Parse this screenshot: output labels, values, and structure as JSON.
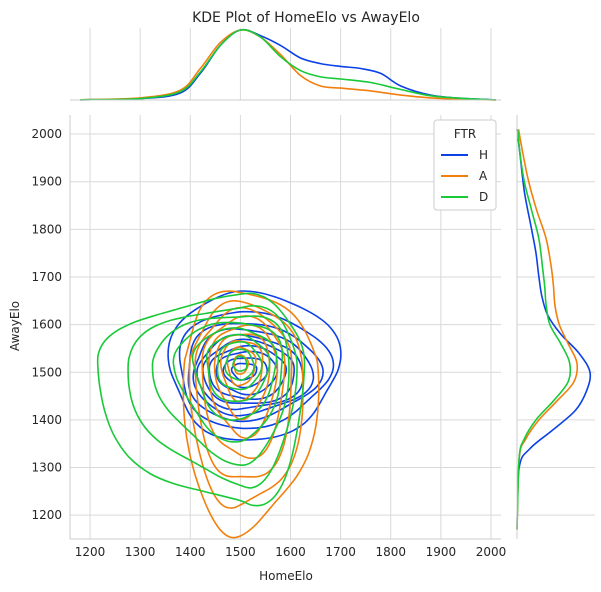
{
  "chart_data": {
    "type": "kde-joint",
    "title": "KDE Plot of HomeElo vs AwayElo",
    "xlabel": "HomeElo",
    "ylabel": "AwayElo",
    "xlim": [
      1160,
      2020
    ],
    "ylim": [
      1150,
      2040
    ],
    "xticks": [
      1200,
      1300,
      1400,
      1500,
      1600,
      1700,
      1800,
      1900,
      2000
    ],
    "yticks": [
      1200,
      1300,
      1400,
      1500,
      1600,
      1700,
      1800,
      1900,
      2000
    ],
    "grid": true,
    "legend": {
      "title": "FTR",
      "placement": "top-right"
    },
    "series": [
      {
        "name": "H",
        "color": "#0c41e6",
        "center": [
          1505,
          1505
        ],
        "levels": [
          {
            "rx": [
              190,
              145
            ],
            "ry": [
              168,
              145
            ]
          },
          {
            "rx": [
              170,
              130
            ],
            "ry": [
              125,
              120
            ]
          },
          {
            "rx": [
              150,
              115
            ],
            "ry": [
              100,
              105
            ]
          },
          {
            "rx": [
              135,
              100
            ],
            "ry": [
              85,
              95
            ]
          },
          {
            "rx": [
              120,
              90
            ],
            "ry": [
              70,
              85
            ]
          },
          {
            "rx": [
              105,
              78
            ],
            "ry": [
              60,
              75
            ]
          },
          {
            "rx": [
              88,
              66
            ],
            "ry": [
              48,
              62
            ]
          },
          {
            "rx": [
              70,
              52
            ],
            "ry": [
              38,
              50
            ]
          },
          {
            "rx": [
              50,
              38
            ],
            "ry": [
              26,
              35
            ]
          },
          {
            "rx": [
              28,
              22
            ],
            "ry": [
              14,
              20
            ]
          }
        ],
        "x_marginal": [
          [
            1180,
            0.003
          ],
          [
            1300,
            0.02
          ],
          [
            1380,
            0.1
          ],
          [
            1420,
            0.38
          ],
          [
            1460,
            0.78
          ],
          [
            1500,
            1.0
          ],
          [
            1540,
            0.92
          ],
          [
            1580,
            0.78
          ],
          [
            1620,
            0.6
          ],
          [
            1660,
            0.52
          ],
          [
            1700,
            0.48
          ],
          [
            1740,
            0.45
          ],
          [
            1780,
            0.38
          ],
          [
            1820,
            0.2
          ],
          [
            1880,
            0.07
          ],
          [
            1950,
            0.02
          ],
          [
            2010,
            0.003
          ]
        ],
        "y_marginal": [
          [
            1170,
            0.0
          ],
          [
            1300,
            0.03
          ],
          [
            1340,
            0.18
          ],
          [
            1380,
            0.5
          ],
          [
            1420,
            0.8
          ],
          [
            1460,
            0.95
          ],
          [
            1500,
            1.0
          ],
          [
            1540,
            0.85
          ],
          [
            1580,
            0.6
          ],
          [
            1620,
            0.42
          ],
          [
            1660,
            0.34
          ],
          [
            1700,
            0.3
          ],
          [
            1750,
            0.26
          ],
          [
            1800,
            0.2
          ],
          [
            1880,
            0.1
          ],
          [
            1960,
            0.04
          ],
          [
            2010,
            0.0
          ]
        ]
      },
      {
        "name": "A",
        "color": "#f27f0c",
        "center": [
          1500,
          1518
        ],
        "levels": [
          {
            "rx": [
              150,
              115
            ],
            "ry": [
              150,
              360
            ]
          },
          {
            "rx": [
              125,
              100
            ],
            "ry": [
              125,
              310
            ]
          },
          {
            "rx": [
              105,
              88
            ],
            "ry": [
              110,
              255
            ]
          },
          {
            "rx": [
              90,
              75
            ],
            "ry": [
              95,
              200
            ]
          },
          {
            "rx": [
              75,
              62
            ],
            "ry": [
              80,
              150
            ]
          },
          {
            "rx": [
              60,
              50
            ],
            "ry": [
              65,
              110
            ]
          },
          {
            "rx": [
              45,
              38
            ],
            "ry": [
              50,
              75
            ]
          },
          {
            "rx": [
              30,
              26
            ],
            "ry": [
              35,
              45
            ]
          },
          {
            "rx": [
              15,
              13
            ],
            "ry": [
              18,
              22
            ]
          }
        ],
        "x_marginal": [
          [
            1180,
            0.003
          ],
          [
            1300,
            0.03
          ],
          [
            1380,
            0.14
          ],
          [
            1420,
            0.45
          ],
          [
            1460,
            0.82
          ],
          [
            1500,
            1.0
          ],
          [
            1540,
            0.9
          ],
          [
            1580,
            0.65
          ],
          [
            1620,
            0.35
          ],
          [
            1660,
            0.2
          ],
          [
            1700,
            0.17
          ],
          [
            1760,
            0.13
          ],
          [
            1820,
            0.07
          ],
          [
            1880,
            0.03
          ],
          [
            1950,
            0.01
          ],
          [
            2010,
            0.0
          ]
        ],
        "y_marginal": [
          [
            1170,
            0.0
          ],
          [
            1320,
            0.03
          ],
          [
            1360,
            0.12
          ],
          [
            1400,
            0.3
          ],
          [
            1440,
            0.55
          ],
          [
            1480,
            0.78
          ],
          [
            1520,
            0.82
          ],
          [
            1560,
            0.7
          ],
          [
            1600,
            0.58
          ],
          [
            1640,
            0.52
          ],
          [
            1680,
            0.5
          ],
          [
            1720,
            0.47
          ],
          [
            1780,
            0.4
          ],
          [
            1840,
            0.27
          ],
          [
            1900,
            0.16
          ],
          [
            1960,
            0.08
          ],
          [
            2010,
            0.02
          ]
        ]
      },
      {
        "name": "D",
        "color": "#1ac938",
        "center": [
          1500,
          1518
        ],
        "levels": [
          {
            "rx": [
              130,
              280
            ],
            "ry": [
              140,
              300
            ]
          },
          {
            "rx": [
              115,
              220
            ],
            "ry": [
              120,
              250
            ]
          },
          {
            "rx": [
              100,
              170
            ],
            "ry": [
              105,
              200
            ]
          },
          {
            "rx": [
              85,
              130
            ],
            "ry": [
              90,
              155
            ]
          },
          {
            "rx": [
              70,
              95
            ],
            "ry": [
              75,
              115
            ]
          },
          {
            "rx": [
              55,
              70
            ],
            "ry": [
              60,
              80
            ]
          },
          {
            "rx": [
              40,
              48
            ],
            "ry": [
              45,
              55
            ]
          },
          {
            "rx": [
              26,
              30
            ],
            "ry": [
              30,
              35
            ]
          },
          {
            "rx": [
              13,
              14
            ],
            "ry": [
              15,
              16
            ]
          }
        ],
        "x_marginal": [
          [
            1180,
            0.003
          ],
          [
            1300,
            0.02
          ],
          [
            1380,
            0.12
          ],
          [
            1420,
            0.4
          ],
          [
            1460,
            0.78
          ],
          [
            1500,
            1.0
          ],
          [
            1540,
            0.9
          ],
          [
            1580,
            0.62
          ],
          [
            1620,
            0.42
          ],
          [
            1660,
            0.33
          ],
          [
            1700,
            0.3
          ],
          [
            1760,
            0.25
          ],
          [
            1820,
            0.15
          ],
          [
            1880,
            0.06
          ],
          [
            1950,
            0.02
          ],
          [
            2010,
            0.0
          ]
        ],
        "y_marginal": [
          [
            1170,
            0.0
          ],
          [
            1320,
            0.03
          ],
          [
            1360,
            0.1
          ],
          [
            1400,
            0.26
          ],
          [
            1440,
            0.5
          ],
          [
            1480,
            0.7
          ],
          [
            1520,
            0.72
          ],
          [
            1560,
            0.6
          ],
          [
            1600,
            0.45
          ],
          [
            1640,
            0.4
          ],
          [
            1680,
            0.38
          ],
          [
            1720,
            0.35
          ],
          [
            1780,
            0.3
          ],
          [
            1840,
            0.2
          ],
          [
            1900,
            0.1
          ],
          [
            1960,
            0.04
          ],
          [
            2010,
            0.01
          ]
        ]
      }
    ]
  }
}
